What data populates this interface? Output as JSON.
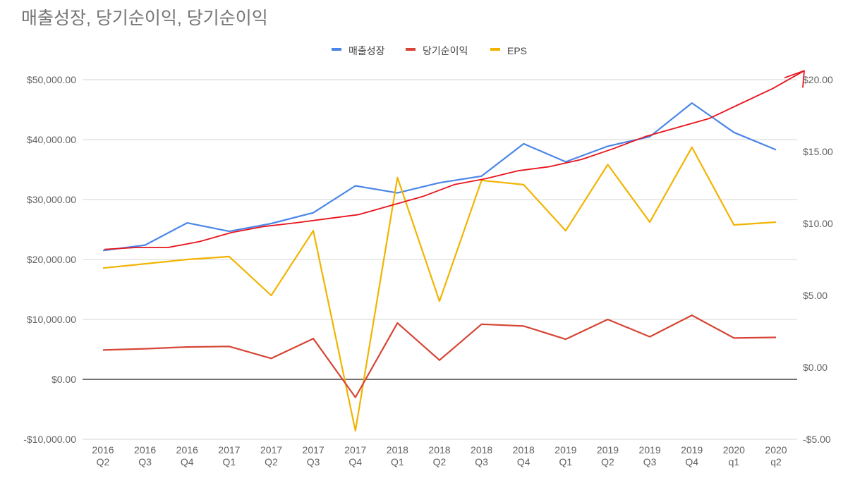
{
  "chart_data": {
    "type": "line",
    "title": "매출성장, 당기순이익, 당기순이익",
    "xlabel": "",
    "ylabel": "",
    "legend_position": "top",
    "grid": true,
    "categories": [
      "2016 Q2",
      "2016 Q3",
      "2016 Q4",
      "2017 Q1",
      "2017 Q2",
      "2017 Q3",
      "2017 Q4",
      "2018 Q1",
      "2018 Q2",
      "2018 Q3",
      "2018 Q4",
      "2019 Q1",
      "2019 Q2",
      "2019 Q3",
      "2019 Q4",
      "2020 q1",
      "2020 q2"
    ],
    "category_lines": [
      [
        "2016",
        "Q2"
      ],
      [
        "2016",
        "Q3"
      ],
      [
        "2016",
        "Q4"
      ],
      [
        "2017",
        "Q1"
      ],
      [
        "2017",
        "Q2"
      ],
      [
        "2017",
        "Q3"
      ],
      [
        "2017",
        "Q4"
      ],
      [
        "2018",
        "Q1"
      ],
      [
        "2018",
        "Q2"
      ],
      [
        "2018",
        "Q3"
      ],
      [
        "2018",
        "Q4"
      ],
      [
        "2019",
        "Q1"
      ],
      [
        "2019",
        "Q2"
      ],
      [
        "2019",
        "Q3"
      ],
      [
        "2019",
        "Q4"
      ],
      [
        "2020",
        "q1"
      ],
      [
        "2020",
        "q2"
      ]
    ],
    "y_left": {
      "min": -10000,
      "max": 50000,
      "ticks": [
        -10000,
        0,
        10000,
        20000,
        30000,
        40000,
        50000
      ],
      "tick_labels": [
        "-$10,000.00",
        "$0.00",
        "$10,000.00",
        "$20,000.00",
        "$30,000.00",
        "$40,000.00",
        "$50,000.00"
      ]
    },
    "y_right": {
      "min": -5,
      "max": 20,
      "ticks": [
        -5,
        0,
        5,
        10,
        15,
        20
      ],
      "tick_labels": [
        "-$5.00",
        "$0.00",
        "$5.00",
        "$10.00",
        "$15.00",
        "$20.00"
      ]
    },
    "series": [
      {
        "name": "매출성장",
        "axis": "left",
        "color": "#4a86e8",
        "values": [
          21500,
          22400,
          26100,
          24700,
          26000,
          27800,
          32300,
          31100,
          32800,
          33900,
          39300,
          36300,
          38900,
          40500,
          46100,
          41200,
          38300
        ]
      },
      {
        "name": "당기순이익",
        "axis": "left",
        "color": "#d64535",
        "values": [
          4900,
          5100,
          5400,
          5500,
          3500,
          6800,
          -3000,
          9400,
          3200,
          9200,
          8900,
          6700,
          10000,
          7100,
          10700,
          6900,
          7000
        ]
      },
      {
        "name": "EPS",
        "axis": "right",
        "color": "#f1b400",
        "values": [
          6.9,
          7.2,
          7.5,
          7.7,
          5.0,
          9.5,
          -4.4,
          13.2,
          4.6,
          13.0,
          12.7,
          9.5,
          14.1,
          10.1,
          15.3,
          9.9,
          10.1
        ]
      }
    ],
    "annotation": {
      "type": "hand-drawn trend arrow",
      "color": "#e8131c",
      "values": [
        21700,
        22000,
        22000,
        23000,
        24500,
        25500,
        26100,
        26800,
        27500,
        29000,
        30500,
        32500,
        33500,
        34800,
        35500,
        36700,
        38500,
        40500,
        42000,
        43500,
        46000,
        48500,
        51500
      ]
    }
  }
}
